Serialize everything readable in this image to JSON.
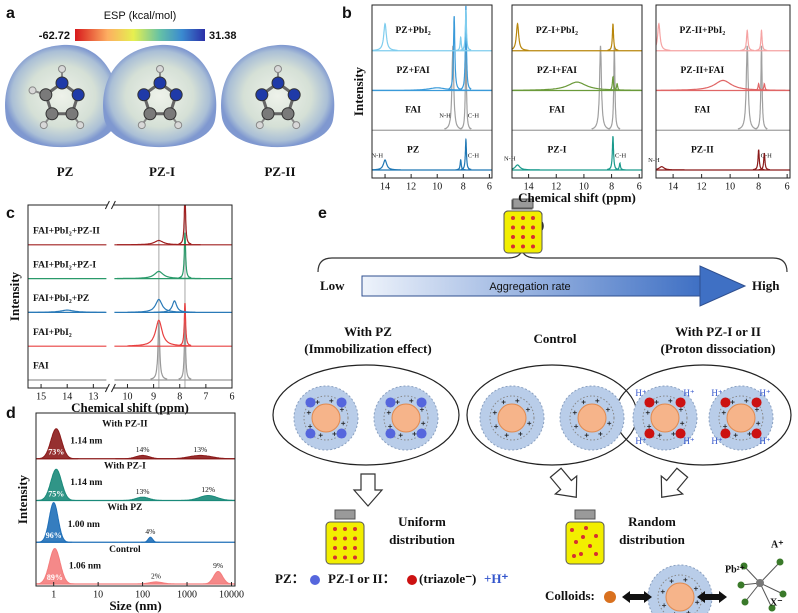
{
  "panel_labels": [
    "a",
    "b",
    "c",
    "d",
    "e"
  ],
  "esp_panel": {
    "colorbar_title": "ESP (kcal/mol)",
    "min": -62.72,
    "max": 31.38,
    "molecules": [
      "PZ",
      "PZ-I",
      "PZ-II"
    ]
  },
  "chart_data": [
    {
      "type": "nmr",
      "ylabel": "Intensity",
      "xlim": [
        15,
        5.8
      ],
      "xticks": [
        14,
        12,
        10,
        8,
        6
      ],
      "traces": [
        {
          "name": "PZ",
          "color": "#1f77b4",
          "peaks": [
            {
              "x": 14,
              "height": 0.3,
              "width": 0.15,
              "label": "N-H"
            },
            {
              "x": 8.2,
              "height": 0.3,
              "width": 0.05
            },
            {
              "x": 7.8,
              "height": 0.9,
              "width": 0.05,
              "label": "C-H"
            }
          ]
        },
        {
          "name": "FAI",
          "color": "#a0a0a0",
          "peaks": [
            {
              "x": 8.8,
              "height": 2.5,
              "width": 0.08,
              "label": "N-H"
            },
            {
              "x": 7.8,
              "height": 2.5,
              "width": 0.05,
              "label": "C-H"
            }
          ]
        },
        {
          "name": "PZ+FAI",
          "color": "#3a9ad9",
          "peaks": [
            {
              "x": 10,
              "height": 0.08,
              "width": 0.8
            },
            {
              "x": 8.7,
              "height": 2.2,
              "width": 0.06
            },
            {
              "x": 7.8,
              "height": 2.5,
              "width": 0.05
            }
          ]
        },
        {
          "name": "PZ+PbI₂",
          "color": "#7fcdee",
          "peaks": [
            {
              "x": 14,
              "height": 0.8,
              "width": 0.12
            },
            {
              "x": 8.2,
              "height": 0.4,
              "width": 0.05
            },
            {
              "x": 7.8,
              "height": 1.2,
              "width": 0.05
            }
          ]
        }
      ]
    },
    {
      "type": "nmr",
      "xlabel": "Chemical shift (ppm)",
      "xlim": [
        15.2,
        5.8
      ],
      "xticks": [
        14,
        12,
        10,
        8,
        6
      ],
      "traces": [
        {
          "name": "PZ-I",
          "color": "#1a9a8c",
          "peaks": [
            {
              "x": 14.8,
              "height": 0.15,
              "width": 0.2,
              "label": "N-H"
            },
            {
              "x": 7.9,
              "height": 1.0,
              "width": 0.05,
              "label": "C-H"
            },
            {
              "x": 7.4,
              "height": 0.2,
              "width": 0.05
            }
          ]
        },
        {
          "name": "FAI",
          "color": "#a0a0a0",
          "peaks": [
            {
              "x": 8.8,
              "height": 2.5,
              "width": 0.08
            },
            {
              "x": 7.8,
              "height": 2.5,
              "width": 0.05
            }
          ]
        },
        {
          "name": "PZ-I+FAI",
          "color": "#6b9a3a",
          "peaks": [
            {
              "x": 10.5,
              "height": 0.25,
              "width": 0.8
            },
            {
              "x": 7.9,
              "height": 0.4,
              "width": 0.05
            },
            {
              "x": 7.6,
              "height": 0.2,
              "width": 0.05
            }
          ]
        },
        {
          "name": "PZ-I+PbI₂",
          "color": "#b8860b",
          "peaks": [
            {
              "x": 14.8,
              "height": 0.8,
              "width": 0.1
            },
            {
              "x": 7.9,
              "height": 0.8,
              "width": 0.05
            }
          ]
        }
      ]
    },
    {
      "type": "nmr",
      "xlim": [
        15.2,
        5.8
      ],
      "xticks": [
        14,
        12,
        10,
        8,
        6
      ],
      "traces": [
        {
          "name": "PZ-II",
          "color": "#8b1a1a",
          "peaks": [
            {
              "x": 14.8,
              "height": 0.1,
              "width": 0.2,
              "label": "N-H"
            },
            {
              "x": 8,
              "height": 0.6,
              "width": 0.05,
              "label": "C-H"
            },
            {
              "x": 7.6,
              "height": 0.5,
              "width": 0.05
            }
          ]
        },
        {
          "name": "FAI",
          "color": "#a0a0a0",
          "peaks": [
            {
              "x": 8.8,
              "height": 2.5,
              "width": 0.08
            },
            {
              "x": 7.8,
              "height": 2.5,
              "width": 0.05
            }
          ]
        },
        {
          "name": "PZ-II+FAI",
          "color": "#e06666",
          "peaks": [
            {
              "x": 10.5,
              "height": 0.3,
              "width": 0.7
            },
            {
              "x": 8,
              "height": 0.2,
              "width": 0.05
            },
            {
              "x": 7.6,
              "height": 0.2,
              "width": 0.05
            }
          ]
        },
        {
          "name": "PZ-II+PbI₂",
          "color": "#f5a3a3",
          "peaks": [
            {
              "x": 15,
              "height": 0.8,
              "width": 0.1
            },
            {
              "x": 8.8,
              "height": 0.6,
              "width": 0.06
            },
            {
              "x": 7.8,
              "height": 0.6,
              "width": 0.05
            }
          ]
        }
      ]
    },
    {
      "type": "nmr",
      "ylabel": "Intensity",
      "xlabel": "Chemical shift (ppm)",
      "x_segments": [
        [
          15.5,
          12.5
        ],
        [
          10.5,
          6
        ]
      ],
      "xticks": [
        15,
        14,
        13,
        10,
        9,
        8,
        7,
        6
      ],
      "reference_lines": [
        8.8,
        7.8
      ],
      "traces": [
        {
          "name": "FAI",
          "color": "#999999",
          "peaks": [
            {
              "x": 8.8,
              "height": 2,
              "width": 0.04
            },
            {
              "x": 7.8,
              "height": 2,
              "width": 0.03
            }
          ]
        },
        {
          "name": "FAI+PbI₂",
          "color": "#e84040",
          "peaks": [
            {
              "x": 8.8,
              "height": 0.9,
              "width": 0.15
            },
            {
              "x": 7.8,
              "height": 1.5,
              "width": 0.03
            }
          ]
        },
        {
          "name": "FAI+PbI₂+PZ",
          "color": "#2a7ab8",
          "peaks": [
            {
              "x": 14,
              "height": 0.08,
              "width": 0.3
            },
            {
              "x": 8.8,
              "height": 0.45,
              "width": 0.15
            },
            {
              "x": 8.2,
              "height": 0.4,
              "width": 0.1
            }
          ]
        },
        {
          "name": "FAI+PbI₂+PZ-I",
          "color": "#2a9a6a",
          "peaks": [
            {
              "x": 8.8,
              "height": 0.25,
              "width": 0.2
            },
            {
              "x": 7.8,
              "height": 1.6,
              "width": 0.03
            }
          ]
        },
        {
          "name": "FAI+PbI₂+PZ-II",
          "color": "#a02020",
          "peaks": [
            {
              "x": 8.8,
              "height": 0.15,
              "width": 0.2
            },
            {
              "x": 7.8,
              "height": 1.8,
              "width": 0.03
            }
          ]
        }
      ]
    },
    {
      "type": "dls",
      "ylabel": "Intensity",
      "xlabel": "Size (nm)",
      "log_x": true,
      "xlim": [
        0.4,
        12000
      ],
      "xticks": [
        1,
        10,
        100,
        1000,
        10000
      ],
      "traces": [
        {
          "name": "Control",
          "color": "#f47c7c",
          "size_label": "1.06 nm",
          "peaks": [
            {
              "x": 1.06,
              "height": 0.85,
              "width": 0.12,
              "label": "89%"
            },
            {
              "x": 200,
              "height": 0.05,
              "width": 0.15,
              "label": "2%"
            },
            {
              "x": 5000,
              "height": 0.3,
              "width": 0.1,
              "label": "9%"
            }
          ]
        },
        {
          "name": "With PZ",
          "color": "#1f6fb8",
          "size_label": "1.00 nm",
          "peaks": [
            {
              "x": 1,
              "height": 0.95,
              "width": 0.1,
              "label": "96%"
            },
            {
              "x": 150,
              "height": 0.12,
              "width": 0.05,
              "label": "4%"
            }
          ]
        },
        {
          "name": "With PZ-I",
          "color": "#1a8a7a",
          "size_label": "1.14 nm",
          "peaks": [
            {
              "x": 1.14,
              "height": 0.75,
              "width": 0.12,
              "label": "75%"
            },
            {
              "x": 100,
              "height": 0.08,
              "width": 0.15,
              "label": "13%"
            },
            {
              "x": 3000,
              "height": 0.12,
              "width": 0.2,
              "label": "12%"
            }
          ]
        },
        {
          "name": "With PZ-II",
          "color": "#8b1a1a",
          "size_label": "1.14 nm",
          "peaks": [
            {
              "x": 1.14,
              "height": 0.72,
              "width": 0.12,
              "label": "73%"
            },
            {
              "x": 100,
              "height": 0.08,
              "width": 0.15,
              "label": "14%"
            },
            {
              "x": 2000,
              "height": 0.08,
              "width": 0.25,
              "label": "13%"
            }
          ]
        }
      ]
    }
  ],
  "scheme": {
    "rate_low": "Low",
    "rate_title": "Aggregation rate",
    "rate_high": "High",
    "groups": [
      {
        "title": "With PZ",
        "subtitle": "(Immobilization effect)"
      },
      {
        "title": "Control"
      },
      {
        "title": "With PZ-I or II",
        "subtitle": "(Proton dissociation)"
      }
    ],
    "proton": "H⁺",
    "outcomes": [
      {
        "line1": "Uniform",
        "line2": "distribution"
      },
      {
        "line1": "Random",
        "line2": "distribution"
      }
    ],
    "legend": {
      "pz": "PZ：",
      "pz_i": "PZ-I or II：",
      "triazole": "(triazole⁻)",
      "proton": "+H⁺"
    },
    "colloids": "Colloids:",
    "ions": {
      "a": "A⁺",
      "pb": "Pb²⁺",
      "x": "X⁻"
    }
  }
}
